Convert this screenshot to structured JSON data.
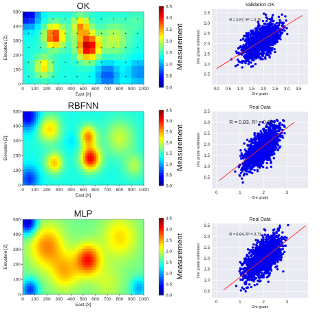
{
  "chart_data": [
    {
      "type": "heatmap",
      "title": "OK",
      "xlabel": "East [X]",
      "ylabel": "Elevation [Z]",
      "xlim": [
        0,
        1000
      ],
      "ylim": [
        0,
        500
      ],
      "xticks": [
        "0",
        "100",
        "200",
        "300",
        "400",
        "500",
        "600",
        "700",
        "800",
        "900",
        "1000"
      ],
      "yticks": [
        "0",
        "100",
        "200",
        "300",
        "400",
        "500"
      ],
      "colorbar": {
        "label": "Measurement",
        "range": [
          0.0,
          3.5
        ],
        "ticks": [
          "0.0",
          "0.5",
          "1.0",
          "1.5",
          "2.0",
          "2.5",
          "3.0",
          "3.5"
        ]
      },
      "colormap": "jet",
      "grid_resolution": [
        12,
        20
      ],
      "sample_points_marked": true,
      "hotspots": [
        {
          "x": 540,
          "y": 260,
          "value": 3.3,
          "spread": 90
        },
        {
          "x": 260,
          "y": 330,
          "value": 3.0,
          "spread": 80
        },
        {
          "x": 170,
          "y": 120,
          "value": 2.3,
          "spread": 70
        },
        {
          "x": 480,
          "y": 400,
          "value": 2.5,
          "spread": 70
        },
        {
          "x": 760,
          "y": 310,
          "value": 2.0,
          "spread": 110
        },
        {
          "x": 940,
          "y": 430,
          "value": 1.6,
          "spread": 80
        }
      ],
      "low_zones": [
        {
          "x": 40,
          "y": 480,
          "value": 0.3,
          "spread": 90
        },
        {
          "x": 700,
          "y": 60,
          "value": 0.7,
          "spread": 90
        },
        {
          "x": 960,
          "y": 80,
          "value": 0.9,
          "spread": 90
        }
      ],
      "background_value": 1.4
    },
    {
      "type": "scatter",
      "title": "Validation OK",
      "xlabel": "Ore grade",
      "ylabel": "Ore grade estimated",
      "xlim": [
        -0.2,
        3.9
      ],
      "ylim": [
        0.0,
        3.7
      ],
      "xticks": [
        0.0,
        0.5,
        1.0,
        1.5,
        2.0,
        2.5,
        3.0,
        3.5
      ],
      "yticks": [
        0.5,
        1.0,
        1.5,
        2.0,
        2.5,
        3.0,
        3.5
      ],
      "annotation": "R = 0.87, R² = 0.75",
      "point_color": "#0000ee",
      "fit_line": {
        "color": "#ff2020",
        "points": [
          [
            0.0,
            0.78
          ],
          [
            3.65,
            3.38
          ]
        ]
      },
      "trend": {
        "x_range": [
          0.0,
          3.7
        ],
        "y_at_xmin": 0.78,
        "y_at_xmax": 3.4,
        "y_cap": 3.4,
        "spread": 0.35,
        "n_points": 1400
      },
      "background": "#e9eaf2",
      "grid": true
    },
    {
      "type": "heatmap",
      "title": "RBFNN",
      "xlabel": "East [X]",
      "ylabel": "Elevation [Z]",
      "xlim": [
        0,
        1000
      ],
      "ylim": [
        0,
        500
      ],
      "xticks": [
        "0",
        "100",
        "200",
        "300",
        "400",
        "500",
        "600",
        "700",
        "800",
        "900",
        "1000"
      ],
      "yticks": [
        "0",
        "100",
        "200",
        "300",
        "400",
        "500"
      ],
      "colorbar": {
        "label": "Measurement",
        "range": [
          0.0,
          3.5
        ],
        "ticks": [
          "0.0",
          "0.5",
          "1.0",
          "1.5",
          "2.0",
          "2.5",
          "3.0",
          "3.5"
        ]
      },
      "colormap": "jet",
      "grid_resolution": [
        28,
        56
      ],
      "sample_points_marked": false,
      "hotspots": [
        {
          "x": 560,
          "y": 180,
          "value": 3.1,
          "spread": 80
        },
        {
          "x": 540,
          "y": 330,
          "value": 2.6,
          "spread": 70
        },
        {
          "x": 260,
          "y": 150,
          "value": 2.4,
          "spread": 70
        },
        {
          "x": 220,
          "y": 380,
          "value": 2.3,
          "spread": 90
        },
        {
          "x": 800,
          "y": 320,
          "value": 2.0,
          "spread": 120
        },
        {
          "x": 920,
          "y": 130,
          "value": 1.9,
          "spread": 80
        }
      ],
      "low_zones": [
        {
          "x": 40,
          "y": 470,
          "value": 0.3,
          "spread": 90
        },
        {
          "x": 50,
          "y": 40,
          "value": 0.6,
          "spread": 80
        },
        {
          "x": 420,
          "y": 300,
          "value": 1.2,
          "spread": 60
        }
      ],
      "background_value": 1.4
    },
    {
      "type": "scatter",
      "title": "Real Data",
      "xlabel": "Ore grade",
      "ylabel": "Ore grade estimated",
      "xlim": [
        -0.2,
        3.9
      ],
      "ylim": [
        0.0,
        3.5
      ],
      "xticks": [
        0,
        1,
        2,
        3
      ],
      "yticks": [
        0.5,
        1.0,
        1.5,
        2.0,
        2.5,
        3.0,
        3.5
      ],
      "annotation": "R = 0.83, R² = 0.69",
      "point_color": "#0000ee",
      "fit_line": {
        "color": "#ff2020",
        "points": [
          [
            0.1,
            0.35
          ],
          [
            3.3,
            3.0
          ]
        ]
      },
      "trend": {
        "x_range": [
          0.1,
          3.6
        ],
        "y_at_xmin": 0.35,
        "y_at_xmax": 3.2,
        "y_cap": 3.05,
        "spread": 0.35,
        "n_points": 1400
      },
      "background": "#e9eaf2",
      "grid": true
    },
    {
      "type": "heatmap",
      "title": "MLP",
      "xlabel": "East [X]",
      "ylabel": "Elevation [Z]",
      "xlim": [
        0,
        1000
      ],
      "ylim": [
        0,
        500
      ],
      "xticks": [
        "0",
        "100",
        "200",
        "300",
        "400",
        "500",
        "600",
        "700",
        "800",
        "900",
        "1000"
      ],
      "yticks": [
        "0",
        "100",
        "200",
        "300",
        "400",
        "500"
      ],
      "colorbar": {
        "label": "Measurement",
        "range": [
          0.0,
          3.5
        ],
        "ticks": [
          "0.0",
          "0.5",
          "1.0",
          "1.5",
          "2.0",
          "2.5",
          "3.0",
          "3.5"
        ]
      },
      "colormap": "jet",
      "grid_resolution": [
        28,
        56
      ],
      "sample_points_marked": false,
      "hotspots": [
        {
          "x": 540,
          "y": 230,
          "value": 3.0,
          "spread": 100
        },
        {
          "x": 200,
          "y": 320,
          "value": 2.6,
          "spread": 140
        },
        {
          "x": 350,
          "y": 150,
          "value": 2.4,
          "spread": 120
        },
        {
          "x": 800,
          "y": 380,
          "value": 2.3,
          "spread": 140
        },
        {
          "x": 700,
          "y": 80,
          "value": 2.0,
          "spread": 120
        }
      ],
      "low_zones": [
        {
          "x": 40,
          "y": 480,
          "value": 0.2,
          "spread": 80
        },
        {
          "x": 60,
          "y": 30,
          "value": 0.6,
          "spread": 70
        },
        {
          "x": 960,
          "y": 40,
          "value": 1.0,
          "spread": 70
        }
      ],
      "background_value": 1.7
    },
    {
      "type": "scatter",
      "title": "Real Data",
      "xlabel": "Ore grade",
      "ylabel": "Ore grade estimated",
      "xlim": [
        -0.2,
        3.9
      ],
      "ylim": [
        0.2,
        3.6
      ],
      "xticks": [
        0,
        1,
        2,
        3
      ],
      "yticks": [
        0.5,
        1.0,
        1.5,
        2.0,
        2.5,
        3.0,
        3.5
      ],
      "annotation": "R = 0.84, R² = 0.71",
      "point_color": "#0000ee",
      "fit_line": {
        "color": "#ff2020",
        "points": [
          [
            0.3,
            0.55
          ],
          [
            3.8,
            3.5
          ]
        ]
      },
      "trend": {
        "x_range": [
          0.1,
          3.8
        ],
        "y_at_xmin": 0.5,
        "y_at_xmax": 3.5,
        "y_cap": 3.45,
        "spread": 0.38,
        "n_points": 1400
      },
      "background": "#e9eaf2",
      "grid": true
    }
  ]
}
